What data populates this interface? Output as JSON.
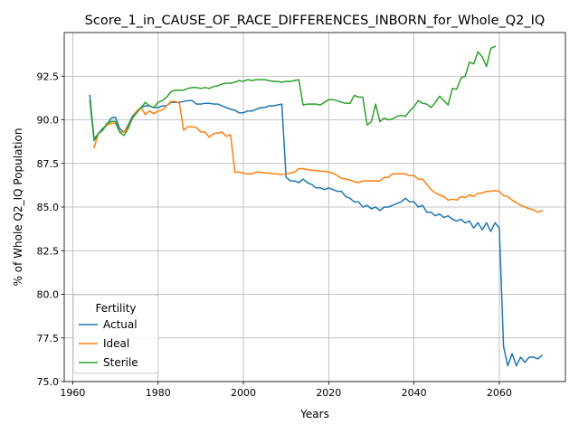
{
  "chart_data": {
    "type": "line",
    "title": "Score_1_in_CAUSE_OF_RACE_DIFFERENCES_INBORN_for_Whole_Q2_IQ",
    "xlabel": "Years",
    "ylabel": "% of Whole Q2_IQ Population",
    "xlim": [
      1958,
      2075.5
    ],
    "ylim": [
      75.0,
      95.0
    ],
    "xticks": [
      "1960",
      "1980",
      "2000",
      "2020",
      "2040",
      "2060"
    ],
    "xtick_values": [
      1960,
      1980,
      2000,
      2020,
      2040,
      2060
    ],
    "yticks": [
      "75.0",
      "77.5",
      "80.0",
      "82.5",
      "85.0",
      "87.5",
      "90.0",
      "92.5"
    ],
    "ytick_values": [
      75.0,
      77.5,
      80.0,
      82.5,
      85.0,
      87.5,
      90.0,
      92.5
    ],
    "grid": true,
    "legend": {
      "title": "Fertility",
      "placement": "lower-left"
    },
    "series": [
      {
        "name": "Actual",
        "color": "#1f77b4",
        "x": [
          1964,
          1965,
          1966,
          1967,
          1968,
          1969,
          1970,
          1971,
          1972,
          1973,
          1974,
          1975,
          1976,
          1977,
          1978,
          1979,
          1980,
          1981,
          1982,
          1983,
          1984,
          1985,
          1986,
          1987,
          1988,
          1989,
          1990,
          1991,
          1992,
          1993,
          1994,
          1995,
          1996,
          1997,
          1998,
          1999,
          2000,
          2001,
          2002,
          2003,
          2004,
          2005,
          2006,
          2007,
          2008,
          2009,
          2010,
          2011,
          2012,
          2013,
          2014,
          2015,
          2016,
          2017,
          2018,
          2019,
          2020,
          2021,
          2022,
          2023,
          2024,
          2025,
          2026,
          2027,
          2028,
          2029,
          2030,
          2031,
          2032,
          2033,
          2034,
          2035,
          2036,
          2037,
          2038,
          2039,
          2040,
          2041,
          2042,
          2043,
          2044,
          2045,
          2046,
          2047,
          2048,
          2049,
          2050,
          2051,
          2052,
          2053,
          2054,
          2055,
          2056,
          2057,
          2058,
          2059,
          2060,
          2061,
          2062,
          2063,
          2064,
          2065,
          2066,
          2067,
          2068,
          2069,
          2070
        ],
        "values": [
          91.4,
          88.9,
          89.2,
          89.5,
          89.7,
          90.1,
          90.15,
          89.5,
          89.3,
          89.7,
          90.2,
          90.5,
          90.7,
          90.8,
          90.8,
          90.7,
          90.7,
          90.8,
          90.8,
          91.0,
          91.0,
          91.0,
          91.05,
          91.1,
          91.1,
          90.9,
          90.9,
          90.95,
          90.95,
          90.9,
          90.9,
          90.8,
          90.7,
          90.6,
          90.55,
          90.4,
          90.4,
          90.5,
          90.5,
          90.6,
          90.7,
          90.7,
          90.8,
          90.8,
          90.85,
          90.9,
          86.7,
          86.5,
          86.5,
          86.4,
          86.6,
          86.4,
          86.3,
          86.1,
          86.1,
          86.0,
          86.1,
          86.0,
          85.9,
          85.9,
          85.6,
          85.5,
          85.3,
          85.3,
          85.0,
          85.1,
          84.9,
          85.0,
          84.8,
          85.0,
          85.0,
          85.1,
          85.2,
          85.3,
          85.5,
          85.3,
          85.3,
          85.0,
          85.1,
          84.7,
          84.7,
          84.5,
          84.6,
          84.4,
          84.5,
          84.3,
          84.2,
          84.3,
          84.1,
          84.2,
          83.8,
          84.1,
          83.7,
          84.1,
          83.6,
          84.1,
          83.8,
          77.0,
          75.9,
          76.6,
          75.9,
          76.4,
          76.1,
          76.4,
          76.4,
          76.3,
          76.5
        ]
      },
      {
        "name": "Ideal",
        "color": "#ff7f0e",
        "x": [
          1965,
          1966,
          1967,
          1968,
          1969,
          1970,
          1971,
          1972,
          1973,
          1974,
          1975,
          1976,
          1977,
          1978,
          1979,
          1980,
          1981,
          1982,
          1983,
          1984,
          1985,
          1986,
          1987,
          1988,
          1989,
          1990,
          1991,
          1992,
          1993,
          1994,
          1995,
          1996,
          1997,
          1998,
          1999,
          2000,
          2001,
          2002,
          2003,
          2004,
          2005,
          2006,
          2007,
          2008,
          2009,
          2010,
          2011,
          2012,
          2013,
          2014,
          2015,
          2016,
          2017,
          2018,
          2019,
          2020,
          2021,
          2022,
          2023,
          2024,
          2025,
          2026,
          2027,
          2028,
          2029,
          2030,
          2031,
          2032,
          2033,
          2034,
          2035,
          2036,
          2037,
          2038,
          2039,
          2040,
          2041,
          2042,
          2043,
          2044,
          2045,
          2046,
          2047,
          2048,
          2049,
          2050,
          2051,
          2052,
          2053,
          2054,
          2055,
          2056,
          2057,
          2058,
          2059,
          2060,
          2061,
          2062,
          2063,
          2064,
          2065,
          2066,
          2067,
          2068,
          2069,
          2070
        ],
        "values": [
          88.4,
          89.2,
          89.4,
          89.7,
          89.8,
          89.8,
          89.3,
          89.3,
          89.6,
          90.1,
          90.5,
          90.7,
          90.3,
          90.5,
          90.35,
          90.5,
          90.55,
          90.8,
          91.05,
          91.05,
          90.95,
          89.4,
          89.6,
          89.6,
          89.55,
          89.3,
          89.3,
          89.0,
          89.2,
          89.25,
          89.3,
          89.05,
          89.15,
          87.0,
          87.0,
          86.95,
          86.9,
          86.9,
          87.0,
          87.0,
          86.95,
          86.95,
          86.9,
          86.9,
          86.85,
          86.9,
          86.95,
          87.0,
          87.2,
          87.2,
          87.15,
          87.1,
          87.1,
          87.05,
          87.05,
          87.0,
          86.95,
          86.8,
          86.65,
          86.6,
          86.55,
          86.45,
          86.4,
          86.5,
          86.5,
          86.5,
          86.5,
          86.5,
          86.7,
          86.7,
          86.9,
          86.9,
          86.9,
          86.9,
          86.8,
          86.8,
          86.6,
          86.6,
          86.3,
          86.0,
          85.8,
          85.7,
          85.6,
          85.4,
          85.45,
          85.4,
          85.6,
          85.55,
          85.7,
          85.6,
          85.8,
          85.8,
          85.9,
          85.9,
          85.95,
          85.9,
          85.65,
          85.6,
          85.4,
          85.25,
          85.1,
          85.0,
          84.9,
          84.85,
          84.7,
          84.8
        ]
      },
      {
        "name": "Sterile",
        "color": "#2ca02c",
        "x": [
          1964,
          1965,
          1966,
          1967,
          1968,
          1969,
          1970,
          1971,
          1972,
          1973,
          1974,
          1975,
          1976,
          1977,
          1978,
          1979,
          1980,
          1981,
          1982,
          1983,
          1984,
          1985,
          1986,
          1987,
          1988,
          1989,
          1990,
          1991,
          1992,
          1993,
          1994,
          1995,
          1996,
          1997,
          1998,
          1999,
          2000,
          2001,
          2002,
          2003,
          2004,
          2005,
          2006,
          2007,
          2008,
          2009,
          2010,
          2011,
          2012,
          2013,
          2014,
          2015,
          2016,
          2017,
          2018,
          2019,
          2020,
          2021,
          2022,
          2023,
          2024,
          2025,
          2026,
          2027,
          2028,
          2029,
          2030,
          2031,
          2032,
          2033,
          2034,
          2035,
          2036,
          2037,
          2038,
          2039,
          2040,
          2041,
          2042,
          2043,
          2044,
          2045,
          2046,
          2047,
          2048,
          2049,
          2050,
          2051,
          2052,
          2053,
          2054,
          2055,
          2056,
          2057,
          2058,
          2059
        ],
        "values": [
          91.1,
          88.8,
          89.2,
          89.4,
          89.8,
          89.9,
          89.9,
          89.3,
          89.1,
          89.5,
          90.1,
          90.4,
          90.7,
          91.0,
          90.8,
          90.7,
          91.0,
          91.1,
          91.3,
          91.6,
          91.7,
          91.7,
          91.7,
          91.8,
          91.85,
          91.85,
          91.8,
          91.85,
          91.8,
          91.9,
          91.95,
          92.05,
          92.1,
          92.1,
          92.15,
          92.25,
          92.2,
          92.3,
          92.25,
          92.3,
          92.3,
          92.3,
          92.25,
          92.2,
          92.2,
          92.15,
          92.2,
          92.2,
          92.25,
          92.3,
          90.85,
          90.9,
          90.9,
          90.9,
          90.85,
          91.0,
          91.15,
          91.15,
          91.1,
          91.0,
          90.95,
          90.95,
          91.4,
          91.3,
          91.3,
          89.7,
          89.9,
          90.9,
          89.9,
          90.1,
          90.0,
          90.05,
          90.2,
          90.25,
          90.2,
          90.5,
          90.75,
          91.1,
          90.95,
          90.9,
          90.7,
          91.0,
          91.35,
          91.1,
          90.85,
          91.8,
          91.75,
          92.4,
          92.5,
          93.3,
          93.2,
          93.9,
          93.6,
          93.05,
          94.1,
          94.2
        ]
      }
    ]
  }
}
